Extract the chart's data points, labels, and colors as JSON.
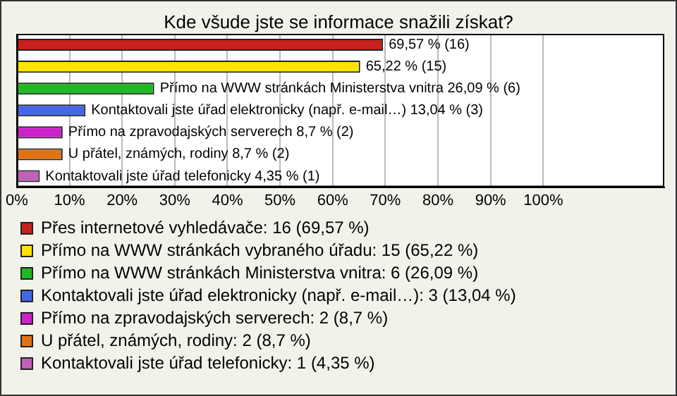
{
  "chart_data": {
    "type": "bar",
    "orientation": "horizontal",
    "stacked": true,
    "title": "Kde všude jste se informace snažili získat?",
    "categories": [
      null,
      null,
      null,
      null,
      null,
      null,
      null
    ],
    "series": [
      {
        "name": "Přes internetové vyhledávače: 16 (69,57 %)",
        "color": "#c8201c",
        "values": [
          69.57,
          null,
          null,
          null,
          null,
          null,
          null
        ],
        "value_labels": [
          "69,57 % (16)",
          null,
          null,
          null,
          null,
          null,
          null
        ]
      },
      {
        "name": "Přímo na WWW stránkách vybraného úřadu: 15 (65,22 %)",
        "color": "#ffe400",
        "values": [
          null,
          65.22,
          null,
          null,
          null,
          null,
          null
        ],
        "value_labels": [
          null,
          "65,22 % (15)",
          null,
          null,
          null,
          null,
          null
        ]
      },
      {
        "name": "Přímo na WWW stránkách Ministerstva vnitra: 6 (26,09 %)",
        "color": "#22b822",
        "values": [
          null,
          null,
          26.09,
          null,
          null,
          null,
          null
        ],
        "value_labels": [
          null,
          null,
          "Přímo na WWW stránkách Ministerstva vnitra 26,09 % (6)",
          null,
          null,
          null,
          null
        ]
      },
      {
        "name": "Kontaktovali jste úřad elektronicky (např. e-mail…): 3 (13,04 %)",
        "color": "#4466e8",
        "values": [
          null,
          null,
          null,
          13.04,
          null,
          null,
          null
        ],
        "value_labels": [
          null,
          null,
          null,
          "Kontaktovali jste úřad elektronicky (např. e-mail…) 13,04 % (3)",
          null,
          null,
          null
        ]
      },
      {
        "name": "Přímo na zpravodajských serverech: 2 (8,7 %)",
        "color": "#cc22cc",
        "values": [
          null,
          null,
          null,
          null,
          8.7,
          null,
          null
        ],
        "value_labels": [
          null,
          null,
          null,
          null,
          "Přímo na zpravodajských serverech 8,7 % (2)",
          null,
          null
        ]
      },
      {
        "name": "U přátel, známých, rodiny: 2 (8,7 %)",
        "color": "#e07414",
        "values": [
          null,
          null,
          null,
          null,
          null,
          8.7,
          null
        ],
        "value_labels": [
          null,
          null,
          null,
          null,
          null,
          "U přátel, známých, rodiny 8,7 % (2)",
          null
        ]
      },
      {
        "name": "Kontaktovali jste úřad telefonicky: 1 (4,35 %)",
        "color": "#c060b8",
        "values": [
          null,
          null,
          null,
          null,
          null,
          null,
          4.35
        ],
        "value_labels": [
          null,
          null,
          null,
          null,
          null,
          null,
          "Kontaktovali jste úřad telefonicky 4,35 % (1)"
        ]
      }
    ],
    "xlim": [
      0,
      123
    ],
    "xticks": [
      {
        "value": 0,
        "label": "0%"
      },
      {
        "value": 10,
        "label": "10%"
      },
      {
        "value": 20,
        "label": "20%"
      },
      {
        "value": 30,
        "label": "30%"
      },
      {
        "value": 40,
        "label": "40%"
      },
      {
        "value": 50,
        "label": "50%"
      },
      {
        "value": 60,
        "label": "60%"
      },
      {
        "value": 70,
        "label": "70%"
      },
      {
        "value": 80,
        "label": "80%"
      },
      {
        "value": 90,
        "label": "90%"
      },
      {
        "value": 100,
        "label": "100%"
      }
    ],
    "grid": "x",
    "legend": "bottom",
    "tick_labels": "x"
  }
}
